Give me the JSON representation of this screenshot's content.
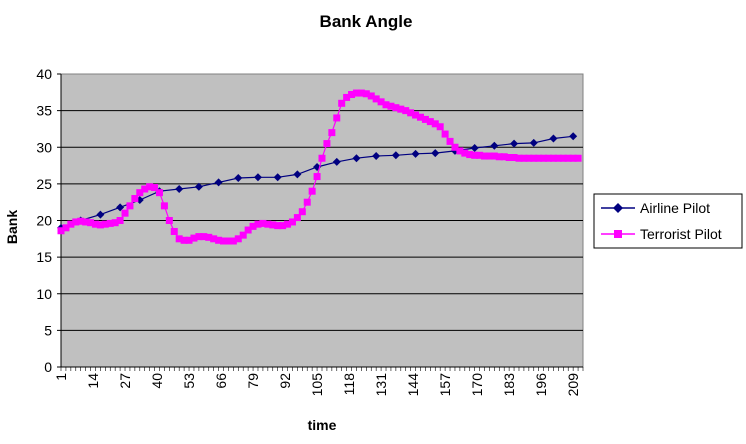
{
  "chart_data": {
    "type": "line",
    "title": "Bank Angle",
    "xlabel": "time",
    "ylabel": "Bank",
    "ylim": [
      0,
      40
    ],
    "y_ticks": [
      0,
      5,
      10,
      15,
      20,
      25,
      30,
      35,
      40
    ],
    "x_tick_labels": [
      "1",
      "14",
      "27",
      "40",
      "53",
      "66",
      "79",
      "92",
      "105",
      "118",
      "131",
      "144",
      "157",
      "170",
      "183",
      "196",
      "209"
    ],
    "grid": "horizontal",
    "legend": "right",
    "plot_background": "#c0c0c0",
    "series": [
      {
        "name": "Airline Pilot",
        "color": "#000080",
        "marker": "diamond",
        "x": [
          1,
          9,
          17,
          25,
          33,
          41,
          49,
          57,
          65,
          73,
          81,
          89,
          97,
          105,
          113,
          121,
          129,
          137,
          145,
          153,
          161,
          169,
          177,
          185,
          193,
          201,
          209
        ],
        "y": [
          19,
          20,
          20.8,
          21.8,
          22.8,
          24,
          24.3,
          24.6,
          25.2,
          25.8,
          25.9,
          25.9,
          26.3,
          27.3,
          28,
          28.5,
          28.8,
          28.9,
          29.1,
          29.2,
          29.5,
          29.9,
          30.2,
          30.5,
          30.6,
          31.2,
          31.5
        ]
      },
      {
        "name": "Terrorist Pilot",
        "color": "#ff00ff",
        "marker": "square",
        "x": [
          1,
          3,
          5,
          7,
          9,
          11,
          13,
          15,
          17,
          19,
          21,
          23,
          25,
          27,
          29,
          31,
          33,
          35,
          37,
          39,
          41,
          43,
          45,
          47,
          49,
          51,
          53,
          55,
          57,
          59,
          61,
          63,
          65,
          67,
          69,
          71,
          73,
          75,
          77,
          79,
          81,
          83,
          85,
          87,
          89,
          91,
          93,
          95,
          97,
          99,
          101,
          103,
          105,
          107,
          109,
          111,
          113,
          115,
          117,
          119,
          121,
          123,
          125,
          127,
          129,
          131,
          133,
          135,
          137,
          139,
          141,
          143,
          145,
          147,
          149,
          151,
          153,
          155,
          157,
          159,
          161,
          163,
          165,
          167,
          169,
          171,
          173,
          175,
          177,
          179,
          181,
          183,
          185,
          187,
          189,
          191,
          193,
          195,
          197,
          199,
          201,
          203,
          205,
          207,
          209,
          211
        ],
        "y": [
          18.6,
          19,
          19.5,
          19.8,
          19.9,
          19.8,
          19.7,
          19.5,
          19.4,
          19.5,
          19.6,
          19.7,
          20,
          21,
          22,
          23,
          23.8,
          24.3,
          24.6,
          24.5,
          23.8,
          22,
          20,
          18.5,
          17.5,
          17.3,
          17.3,
          17.6,
          17.8,
          17.8,
          17.7,
          17.5,
          17.3,
          17.2,
          17.2,
          17.2,
          17.5,
          18,
          18.7,
          19.2,
          19.5,
          19.6,
          19.5,
          19.4,
          19.3,
          19.3,
          19.5,
          19.8,
          20.4,
          21.2,
          22.5,
          24,
          26,
          28.5,
          30.5,
          32,
          34,
          36,
          36.8,
          37.2,
          37.4,
          37.4,
          37.3,
          37,
          36.6,
          36.2,
          35.8,
          35.6,
          35.4,
          35.2,
          35,
          34.7,
          34.4,
          34.1,
          33.8,
          33.5,
          33.2,
          32.8,
          31.8,
          30.8,
          30,
          29.5,
          29.2,
          29,
          28.9,
          28.9,
          28.8,
          28.8,
          28.8,
          28.7,
          28.7,
          28.6,
          28.6,
          28.5,
          28.5,
          28.5,
          28.5,
          28.5,
          28.5,
          28.5,
          28.5,
          28.5,
          28.5,
          28.5,
          28.5,
          28.5
        ]
      }
    ]
  }
}
